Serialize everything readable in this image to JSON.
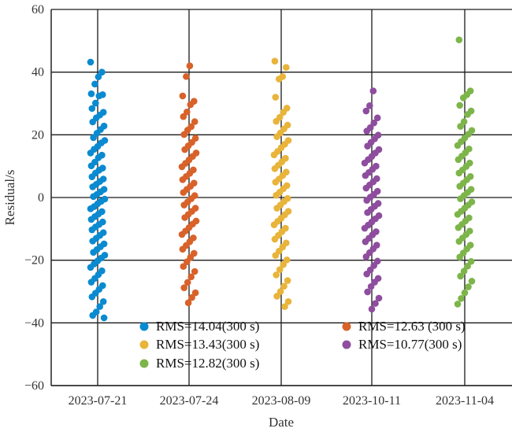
{
  "chart_data": {
    "type": "scatter",
    "title": "",
    "xlabel": "Date",
    "ylabel": "Residual/s",
    "categories": [
      "2023-07-21",
      "2023-07-24",
      "2023-08-09",
      "2023-10-11",
      "2023-11-04"
    ],
    "yticks": [
      "60",
      "40",
      "20",
      "0",
      "−20",
      "−40",
      "−60"
    ],
    "ylim": [
      -60,
      60
    ],
    "grid": true,
    "legend_position": "bottom-center",
    "series": [
      {
        "name": "RMS=14.04(300 s)",
        "category": "2023-07-21",
        "color": "#0a8ad0",
        "values": [
          43.2,
          40.0,
          38.5,
          36.2,
          33.1,
          32.8,
          32.4,
          30.1,
          28.4,
          27.2,
          26.3,
          25.4,
          24.1,
          22.8,
          21.7,
          20.5,
          19.1,
          18.2,
          17.4,
          16.3,
          15.4,
          14.2,
          13.5,
          12.7,
          11.3,
          10.1,
          9.4,
          8.7,
          7.8,
          6.6,
          5.9,
          5.1,
          4.2,
          3.4,
          2.6,
          1.8,
          1.0,
          0.3,
          -0.5,
          -1.2,
          -2.0,
          -2.9,
          -3.6,
          -4.5,
          -5.3,
          -6.1,
          -7.0,
          -7.8,
          -8.6,
          -9.4,
          -10.3,
          -11.2,
          -12.1,
          -13.0,
          -13.9,
          -14.8,
          -15.7,
          -16.6,
          -17.5,
          -18.4,
          -19.3,
          -20.2,
          -21.2,
          -22.3,
          -23.4,
          -24.6,
          -25.8,
          -27.0,
          -28.1,
          -29.3,
          -30.5,
          -31.7,
          -33.2,
          -34.8,
          -36.5,
          -37.6,
          -38.4
        ]
      },
      {
        "name": "RMS=12.63 (300 s)",
        "category": "2023-07-24",
        "color": "#d8622a",
        "values": [
          42.0,
          38.6,
          32.4,
          30.7,
          29.6,
          27.3,
          25.8,
          24.2,
          22.6,
          21.5,
          20.1,
          18.9,
          17.6,
          16.5,
          15.3,
          14.2,
          13.1,
          12.0,
          10.9,
          9.8,
          8.8,
          7.7,
          6.7,
          5.7,
          4.6,
          3.6,
          2.6,
          1.6,
          0.6,
          -0.4,
          -1.4,
          -2.4,
          -3.4,
          -4.4,
          -5.4,
          -6.4,
          -7.5,
          -8.5,
          -9.6,
          -10.7,
          -11.8,
          -12.9,
          -14.1,
          -15.3,
          -16.5,
          -17.8,
          -19.1,
          -20.5,
          -22.0,
          -23.6,
          -25.3,
          -27.1,
          -28.8,
          -30.4,
          -31.9,
          -33.6
        ]
      },
      {
        "name": "RMS=13.43(300 s)",
        "category": "2023-08-09",
        "color": "#e8b43a",
        "values": [
          43.5,
          41.5,
          38.6,
          37.8,
          32.0,
          28.5,
          27.2,
          25.6,
          24.3,
          23.1,
          21.9,
          20.6,
          19.4,
          18.2,
          17.0,
          15.9,
          14.7,
          13.6,
          12.5,
          11.4,
          10.3,
          9.2,
          8.1,
          7.0,
          5.9,
          4.9,
          3.8,
          2.8,
          1.7,
          0.7,
          -0.3,
          -1.3,
          -2.4,
          -3.4,
          -4.4,
          -5.5,
          -6.6,
          -7.6,
          -8.7,
          -9.8,
          -10.9,
          -12.1,
          -13.3,
          -14.5,
          -15.8,
          -17.1,
          -18.5,
          -19.9,
          -21.4,
          -23.0,
          -24.7,
          -26.5,
          -28.3,
          -30.0,
          -31.5,
          -33.2,
          -34.8
        ]
      },
      {
        "name": "RMS=10.77(300 s)",
        "category": "2023-10-11",
        "color": "#8e4d9e",
        "values": [
          34.0,
          29.3,
          27.6,
          25.4,
          23.8,
          22.3,
          21.2,
          19.9,
          18.7,
          17.6,
          16.4,
          15.3,
          14.2,
          13.1,
          12.1,
          11.0,
          10.0,
          9.0,
          8.0,
          7.0,
          6.0,
          5.0,
          4.0,
          3.0,
          2.0,
          1.0,
          0.1,
          -0.9,
          -1.9,
          -2.8,
          -3.8,
          -4.8,
          -5.8,
          -6.8,
          -7.8,
          -8.8,
          -9.8,
          -10.9,
          -11.9,
          -13.0,
          -14.1,
          -15.2,
          -16.4,
          -17.6,
          -18.9,
          -20.3,
          -21.7,
          -23.1,
          -24.4,
          -25.8,
          -27.0,
          -28.4,
          -30.1,
          -32.1,
          -33.8,
          -35.6
        ]
      },
      {
        "name": "RMS=12.82(300 s)",
        "category": "2023-11-04",
        "color": "#7db54a",
        "values": [
          50.3,
          34.0,
          32.8,
          31.8,
          29.4,
          27.6,
          26.5,
          24.2,
          22.7,
          21.4,
          20.2,
          19.0,
          17.8,
          16.6,
          15.5,
          14.3,
          13.2,
          12.1,
          11.0,
          9.9,
          8.8,
          7.8,
          6.7,
          5.7,
          4.6,
          3.6,
          2.6,
          1.6,
          0.6,
          -0.4,
          -1.4,
          -2.4,
          -3.4,
          -4.4,
          -5.4,
          -6.5,
          -7.5,
          -8.6,
          -9.6,
          -10.7,
          -11.8,
          -12.9,
          -14.0,
          -15.2,
          -16.4,
          -17.7,
          -19.0,
          -20.4,
          -21.9,
          -23.5,
          -25.1,
          -26.7,
          -28.5,
          -30.4,
          -32.2,
          -34.0
        ]
      }
    ]
  }
}
